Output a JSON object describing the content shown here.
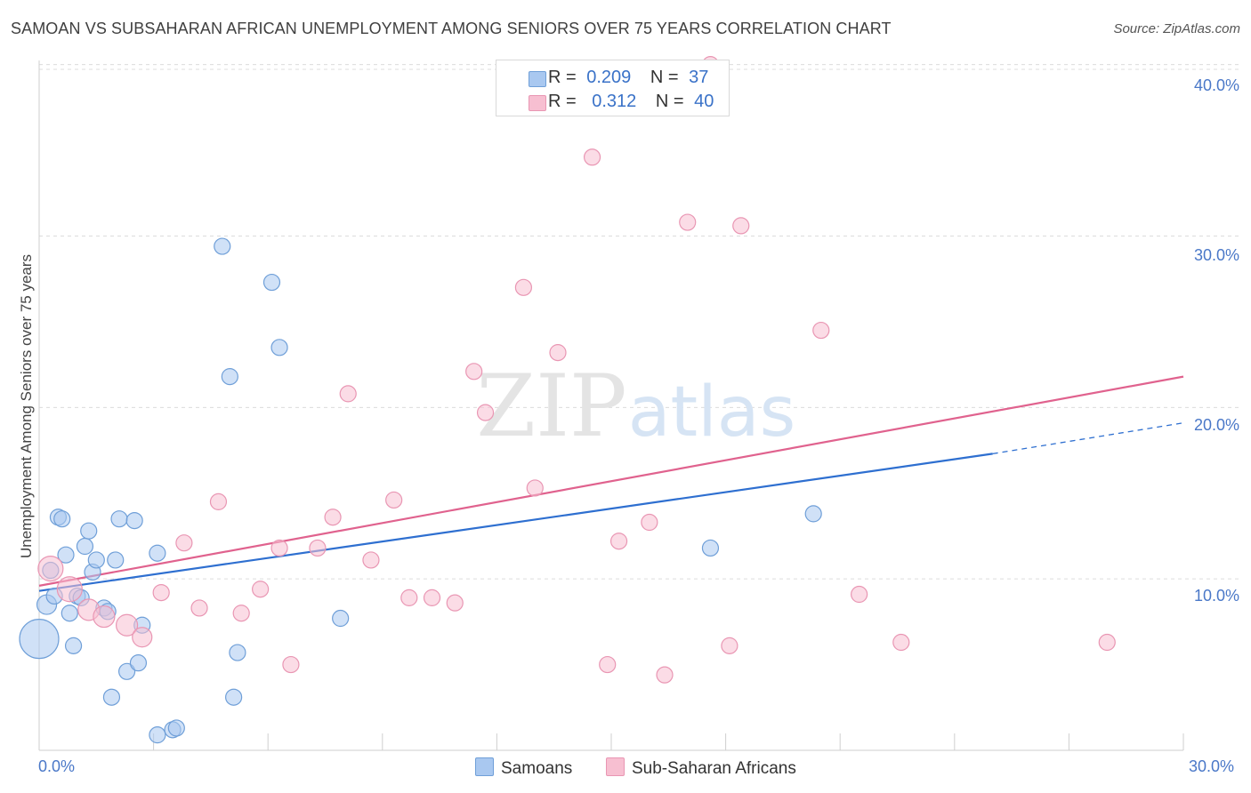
{
  "title": "SAMOAN VS SUBSAHARAN AFRICAN UNEMPLOYMENT AMONG SENIORS OVER 75 YEARS CORRELATION CHART",
  "source": "Source: ZipAtlas.com",
  "watermark": {
    "zip": "ZIP",
    "atlas": "atlas"
  },
  "legend": {
    "samoans": {
      "r_label": "R =",
      "r_value": "0.209",
      "n_label": "N =",
      "n_value": "37"
    },
    "subsaharan": {
      "r_label": "R =",
      "r_value": "0.312",
      "n_label": "N =",
      "n_value": "40"
    }
  },
  "bottom_legend": {
    "samoans": "Samoans",
    "subsaharan": "Sub-Saharan Africans"
  },
  "colors": {
    "blue_fill": "#a9c8f0",
    "blue_stroke": "#6f9fd8",
    "blue_line": "#2e6fd0",
    "pink_fill": "#f7bfd1",
    "pink_stroke": "#e996b3",
    "pink_line": "#e0628e",
    "tick_text": "#4a78c8",
    "grid": "#dcdcdc"
  },
  "chart_data": {
    "type": "scatter",
    "title": "SAMOAN VS SUBSAHARAN AFRICAN UNEMPLOYMENT AMONG SENIORS OVER 75 YEARS CORRELATION CHART",
    "xlabel": "",
    "ylabel": "Unemployment Among Seniors over 75 years",
    "xlim": [
      0,
      30
    ],
    "ylim": [
      0,
      40.5
    ],
    "x_tick_labels": [
      "0.0%",
      "30.0%"
    ],
    "y_ticks": [
      10,
      20,
      30,
      40
    ],
    "y_tick_labels": [
      "10.0%",
      "20.0%",
      "30.0%",
      "40.0%"
    ],
    "series": [
      {
        "name": "Samoans",
        "color": "blue",
        "points": [
          [
            0.0,
            6.5
          ],
          [
            0.2,
            8.5
          ],
          [
            0.3,
            10.5
          ],
          [
            0.4,
            9.0
          ],
          [
            0.5,
            13.6
          ],
          [
            0.6,
            13.5
          ],
          [
            0.7,
            11.4
          ],
          [
            0.8,
            8.0
          ],
          [
            0.9,
            6.1
          ],
          [
            1.0,
            9.0
          ],
          [
            1.1,
            8.9
          ],
          [
            1.2,
            11.9
          ],
          [
            1.3,
            12.8
          ],
          [
            1.4,
            10.4
          ],
          [
            1.5,
            11.1
          ],
          [
            1.7,
            8.3
          ],
          [
            1.8,
            8.1
          ],
          [
            2.0,
            11.1
          ],
          [
            2.1,
            13.5
          ],
          [
            2.3,
            4.6
          ],
          [
            2.5,
            13.4
          ],
          [
            2.6,
            5.1
          ],
          [
            2.7,
            7.3
          ],
          [
            3.1,
            0.9
          ],
          [
            3.1,
            11.5
          ],
          [
            3.5,
            1.2
          ],
          [
            3.6,
            1.3
          ],
          [
            1.9,
            3.1
          ],
          [
            4.8,
            29.4
          ],
          [
            5.0,
            21.8
          ],
          [
            5.1,
            3.1
          ],
          [
            5.2,
            5.7
          ],
          [
            6.1,
            27.3
          ],
          [
            6.3,
            23.5
          ],
          [
            7.9,
            7.7
          ],
          [
            17.6,
            11.8
          ],
          [
            20.3,
            13.8
          ]
        ],
        "sizes": [
          22,
          11,
          9,
          9,
          9,
          9,
          9,
          9,
          9,
          9,
          9,
          9,
          9,
          9,
          9,
          9,
          9,
          9,
          9,
          9,
          9,
          9,
          9,
          9,
          9,
          9,
          9,
          9,
          9,
          9,
          9,
          9,
          9,
          9,
          9,
          9,
          9
        ],
        "trend": {
          "x0": 0,
          "y0": 9.3,
          "x1": 25,
          "y1": 17.3,
          "dashed_to_x": 30,
          "dashed_to_y": 19.1
        }
      },
      {
        "name": "Sub-Saharan Africans",
        "color": "pink",
        "points": [
          [
            0.3,
            10.6
          ],
          [
            0.8,
            9.4
          ],
          [
            1.3,
            8.2
          ],
          [
            1.7,
            7.8
          ],
          [
            2.3,
            7.3
          ],
          [
            2.7,
            6.6
          ],
          [
            3.2,
            9.2
          ],
          [
            3.8,
            12.1
          ],
          [
            4.2,
            8.3
          ],
          [
            4.7,
            14.5
          ],
          [
            5.3,
            8.0
          ],
          [
            5.8,
            9.4
          ],
          [
            6.3,
            11.8
          ],
          [
            6.6,
            5.0
          ],
          [
            7.3,
            11.8
          ],
          [
            7.7,
            13.6
          ],
          [
            8.1,
            20.8
          ],
          [
            8.7,
            11.1
          ],
          [
            9.3,
            14.6
          ],
          [
            9.7,
            8.9
          ],
          [
            10.3,
            8.9
          ],
          [
            10.9,
            8.6
          ],
          [
            11.4,
            22.1
          ],
          [
            11.7,
            19.7
          ],
          [
            12.7,
            27.0
          ],
          [
            13.0,
            15.3
          ],
          [
            13.6,
            23.2
          ],
          [
            14.5,
            34.6
          ],
          [
            14.9,
            5.0
          ],
          [
            15.2,
            12.2
          ],
          [
            16.0,
            13.3
          ],
          [
            16.4,
            4.4
          ],
          [
            17.0,
            30.8
          ],
          [
            17.6,
            40.0
          ],
          [
            18.1,
            6.1
          ],
          [
            18.4,
            30.6
          ],
          [
            20.5,
            24.5
          ],
          [
            21.5,
            9.1
          ],
          [
            22.6,
            6.3
          ],
          [
            28.0,
            6.3
          ]
        ],
        "sizes": [
          14,
          14,
          12,
          12,
          12,
          11,
          9,
          9,
          9,
          9,
          9,
          9,
          9,
          9,
          9,
          9,
          9,
          9,
          9,
          9,
          9,
          9,
          9,
          9,
          9,
          9,
          9,
          9,
          9,
          9,
          9,
          9,
          9,
          9,
          9,
          9,
          9,
          9,
          9,
          9
        ],
        "trend": {
          "x0": 0,
          "y0": 9.6,
          "x1": 30,
          "y1": 21.8
        }
      }
    ]
  }
}
